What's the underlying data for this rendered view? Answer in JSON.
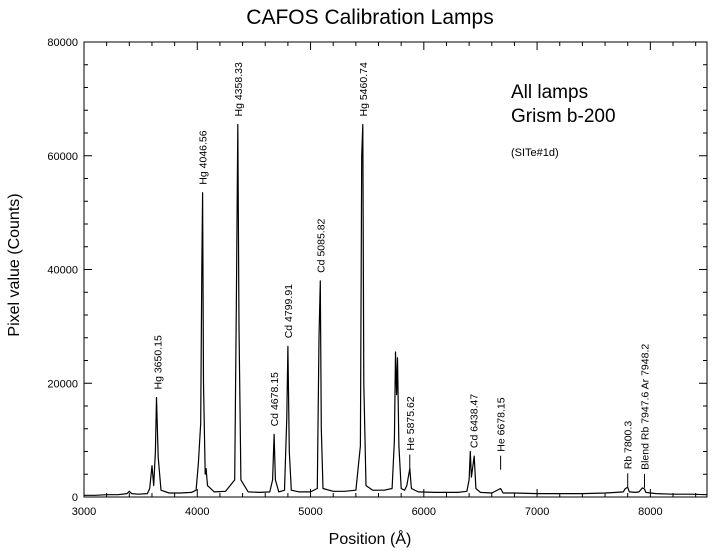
{
  "chart_data": {
    "type": "line",
    "title": "CAFOS  Calibration Lamps",
    "xlabel": "Position (Å)",
    "ylabel": "Pixel value (Counts)",
    "xlim": [
      3000,
      8500
    ],
    "ylim": [
      0,
      80000
    ],
    "xticks": [
      3000,
      4000,
      5000,
      6000,
      7000,
      8000
    ],
    "yticks": [
      0,
      20000,
      40000,
      60000,
      80000
    ],
    "grid": false,
    "legend": null,
    "annotations": {
      "heading": [
        "All lamps",
        "Grism b-200"
      ],
      "detector": "(SITe#1d)"
    },
    "series": [
      {
        "points": [
          [
            3000,
            300
          ],
          [
            3100,
            300
          ],
          [
            3200,
            400
          ],
          [
            3300,
            400
          ],
          [
            3380,
            600
          ],
          [
            3400,
            1000
          ],
          [
            3420,
            600
          ],
          [
            3480,
            500
          ],
          [
            3560,
            600
          ],
          [
            3580,
            1500
          ],
          [
            3600,
            5500
          ],
          [
            3615,
            2000
          ],
          [
            3630,
            8000
          ],
          [
            3640,
            17500
          ],
          [
            3655,
            7000
          ],
          [
            3680,
            1200
          ],
          [
            3750,
            700
          ],
          [
            3850,
            700
          ],
          [
            3950,
            800
          ],
          [
            3990,
            1200
          ],
          [
            4010,
            6000
          ],
          [
            4030,
            13000
          ],
          [
            4040,
            40000
          ],
          [
            4047,
            53500
          ],
          [
            4055,
            20000
          ],
          [
            4070,
            4000
          ],
          [
            4078,
            5000
          ],
          [
            4090,
            2000
          ],
          [
            4150,
            900
          ],
          [
            4250,
            1000
          ],
          [
            4330,
            3000
          ],
          [
            4345,
            35000
          ],
          [
            4358,
            65500
          ],
          [
            4368,
            30000
          ],
          [
            4385,
            3000
          ],
          [
            4450,
            900
          ],
          [
            4550,
            800
          ],
          [
            4640,
            900
          ],
          [
            4665,
            3000
          ],
          [
            4678,
            11000
          ],
          [
            4690,
            3000
          ],
          [
            4720,
            900
          ],
          [
            4770,
            1200
          ],
          [
            4790,
            14000
          ],
          [
            4800,
            26500
          ],
          [
            4812,
            8000
          ],
          [
            4830,
            1200
          ],
          [
            4900,
            900
          ],
          [
            5000,
            900
          ],
          [
            5060,
            1500
          ],
          [
            5075,
            28000
          ],
          [
            5086,
            38000
          ],
          [
            5095,
            12000
          ],
          [
            5110,
            1500
          ],
          [
            5200,
            1000
          ],
          [
            5300,
            1000
          ],
          [
            5400,
            1200
          ],
          [
            5440,
            9000
          ],
          [
            5452,
            60000
          ],
          [
            5461,
            65500
          ],
          [
            5470,
            20000
          ],
          [
            5490,
            2000
          ],
          [
            5550,
            1200
          ],
          [
            5650,
            1200
          ],
          [
            5720,
            1500
          ],
          [
            5740,
            10000
          ],
          [
            5750,
            25500
          ],
          [
            5760,
            18000
          ],
          [
            5768,
            24500
          ],
          [
            5780,
            9000
          ],
          [
            5800,
            1500
          ],
          [
            5830,
            1200
          ],
          [
            5850,
            2000
          ],
          [
            5876,
            5000
          ],
          [
            5890,
            1500
          ],
          [
            5950,
            900
          ],
          [
            6100,
            800
          ],
          [
            6300,
            800
          ],
          [
            6380,
            1000
          ],
          [
            6400,
            3000
          ],
          [
            6410,
            8000
          ],
          [
            6420,
            3500
          ],
          [
            6445,
            7200
          ],
          [
            6460,
            1500
          ],
          [
            6500,
            800
          ],
          [
            6600,
            700
          ],
          [
            6678,
            1500
          ],
          [
            6700,
            700
          ],
          [
            6800,
            700
          ],
          [
            7000,
            600
          ],
          [
            7200,
            600
          ],
          [
            7400,
            600
          ],
          [
            7600,
            700
          ],
          [
            7700,
            800
          ],
          [
            7760,
            900
          ],
          [
            7780,
            1500
          ],
          [
            7800,
            1700
          ],
          [
            7815,
            900
          ],
          [
            7870,
            800
          ],
          [
            7900,
            900
          ],
          [
            7930,
            1600
          ],
          [
            7948,
            1400
          ],
          [
            7960,
            800
          ],
          [
            8050,
            600
          ],
          [
            8200,
            500
          ],
          [
            8350,
            500
          ],
          [
            8500,
            400
          ]
        ]
      }
    ],
    "line_labels": [
      {
        "text": "Hg 3650.15",
        "x": 3650,
        "y": 17500
      },
      {
        "text": "Hg 4046.56",
        "x": 4047,
        "y": 53500
      },
      {
        "text": "Hg 4358.33",
        "x": 4358,
        "y": 65500
      },
      {
        "text": "Cd 4678.15",
        "x": 4678,
        "y": 11000
      },
      {
        "text": "Cd 4799.91",
        "x": 4800,
        "y": 26500
      },
      {
        "text": "Cd 5085.82",
        "x": 5086,
        "y": 38000
      },
      {
        "text": "Hg 5460.74",
        "x": 5461,
        "y": 65500
      },
      {
        "text": "He 5875.62",
        "x": 5876,
        "y": 5000
      },
      {
        "text": "Cd 6438.47",
        "x": 6438,
        "y": 7200
      },
      {
        "text": "He 6678.15",
        "x": 6678,
        "y": 4800
      },
      {
        "text": "Rb 7800.3",
        "x": 7800,
        "y": 1700
      },
      {
        "text": "Blend Rb 7947.6 Ar 7948.2",
        "x": 7948,
        "y": 1600
      }
    ]
  }
}
